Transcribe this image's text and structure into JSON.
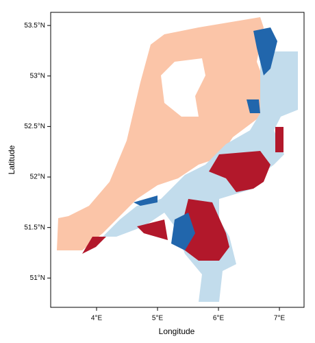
{
  "chart_data": {
    "type": "map",
    "xlabel": "Longitude",
    "ylabel": "Latitude",
    "xlim": [
      3.247,
      7.404
    ],
    "ylim": [
      50.71,
      53.63
    ],
    "xticks": [
      {
        "value": 4,
        "label": "4°E"
      },
      {
        "value": 5,
        "label": "5°E"
      },
      {
        "value": 6,
        "label": "6°E"
      },
      {
        "value": 7,
        "label": "7°E"
      }
    ],
    "yticks": [
      {
        "value": 51,
        "label": "51°N"
      },
      {
        "value": 51.5,
        "label": "51.5°N"
      },
      {
        "value": 52,
        "label": "52°N"
      },
      {
        "value": 52.5,
        "label": "52.5°N"
      },
      {
        "value": 53,
        "label": "53°N"
      },
      {
        "value": 53.5,
        "label": "53.5°N"
      }
    ]
  }
}
